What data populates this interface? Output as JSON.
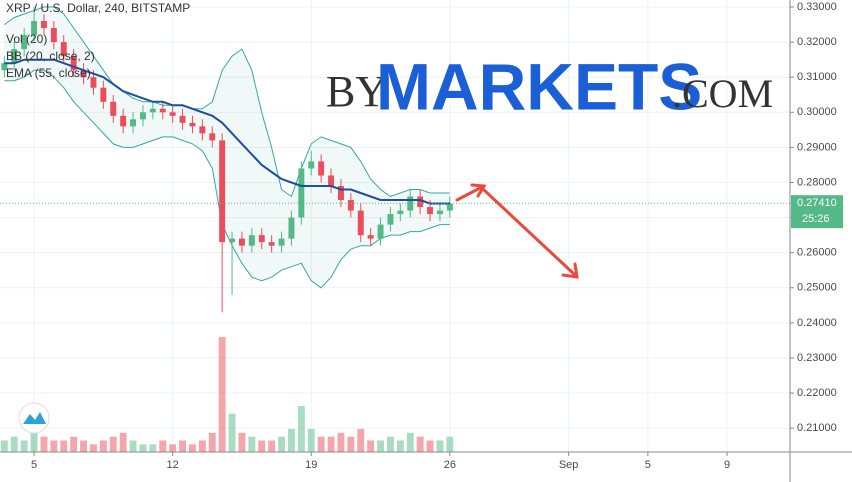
{
  "chart_data": {
    "type": "candlestick",
    "title": "XRP / U.S. Dollar, 240, BITSTAMP",
    "watermark": {
      "prefix": "BY",
      "main": "MARKETS",
      "suffix": ".COM"
    },
    "x": [
      3.5,
      4,
      4.5,
      5,
      5.5,
      6,
      6.5,
      7,
      7.5,
      8,
      8.5,
      9,
      9.5,
      10,
      10.5,
      11,
      11.5,
      12,
      12.5,
      13,
      13.5,
      14,
      14.5,
      15,
      15.5,
      16,
      16.5,
      17,
      17.5,
      18,
      18.5,
      19,
      19.5,
      20,
      20.5,
      21,
      21.5,
      22,
      22.5,
      23,
      23.5,
      24,
      24.5,
      25,
      25.5,
      26
    ],
    "open": [
      0.312,
      0.314,
      0.318,
      0.322,
      0.326,
      0.324,
      0.32,
      0.316,
      0.312,
      0.31,
      0.307,
      0.303,
      0.299,
      0.296,
      0.298,
      0.3,
      0.301,
      0.3,
      0.299,
      0.297,
      0.296,
      0.294,
      0.292,
      0.263,
      0.264,
      0.262,
      0.265,
      0.263,
      0.262,
      0.264,
      0.27,
      0.284,
      0.286,
      0.282,
      0.279,
      0.275,
      0.272,
      0.265,
      0.264,
      0.268,
      0.271,
      0.272,
      0.276,
      0.273,
      0.271,
      0.272
    ],
    "high": [
      0.316,
      0.32,
      0.324,
      0.33,
      0.328,
      0.326,
      0.322,
      0.318,
      0.314,
      0.312,
      0.309,
      0.305,
      0.301,
      0.3,
      0.302,
      0.303,
      0.303,
      0.302,
      0.301,
      0.299,
      0.298,
      0.296,
      0.294,
      0.266,
      0.266,
      0.267,
      0.267,
      0.265,
      0.266,
      0.272,
      0.286,
      0.289,
      0.288,
      0.284,
      0.281,
      0.277,
      0.274,
      0.267,
      0.27,
      0.273,
      0.274,
      0.278,
      0.278,
      0.275,
      0.274,
      0.276
    ],
    "low": [
      0.31,
      0.312,
      0.316,
      0.32,
      0.322,
      0.318,
      0.314,
      0.31,
      0.308,
      0.305,
      0.301,
      0.297,
      0.294,
      0.294,
      0.296,
      0.298,
      0.298,
      0.297,
      0.295,
      0.294,
      0.292,
      0.29,
      0.243,
      0.248,
      0.26,
      0.26,
      0.261,
      0.26,
      0.26,
      0.262,
      0.268,
      0.282,
      0.28,
      0.277,
      0.273,
      0.27,
      0.263,
      0.262,
      0.262,
      0.266,
      0.269,
      0.27,
      0.271,
      0.269,
      0.269,
      0.27
    ],
    "close": [
      0.314,
      0.318,
      0.322,
      0.326,
      0.324,
      0.32,
      0.316,
      0.312,
      0.31,
      0.307,
      0.303,
      0.299,
      0.296,
      0.298,
      0.3,
      0.301,
      0.3,
      0.299,
      0.297,
      0.296,
      0.294,
      0.292,
      0.263,
      0.264,
      0.262,
      0.265,
      0.263,
      0.262,
      0.264,
      0.27,
      0.284,
      0.286,
      0.282,
      0.279,
      0.275,
      0.272,
      0.265,
      0.264,
      0.268,
      0.271,
      0.272,
      0.276,
      0.273,
      0.271,
      0.272,
      0.274
    ],
    "up_color": "#53b987",
    "down_color": "#eb4d5c",
    "volume": {
      "name": "Vol (20)",
      "values": [
        3,
        4,
        3,
        5,
        4,
        3,
        3,
        4,
        3,
        2,
        3,
        4,
        5,
        3,
        2,
        2,
        3,
        2,
        3,
        2,
        3,
        5,
        30,
        10,
        5,
        4,
        3,
        3,
        4,
        6,
        12,
        6,
        4,
        4,
        5,
        4,
        6,
        3,
        3,
        4,
        3,
        5,
        4,
        3,
        3,
        4
      ]
    },
    "bollinger": {
      "name": "BB (20, close, 2)",
      "color": "#3aa6a0",
      "upper": [
        0.325,
        0.327,
        0.328,
        0.329,
        0.33,
        0.33,
        0.328,
        0.324,
        0.32,
        0.316,
        0.312,
        0.308,
        0.306,
        0.304,
        0.303,
        0.303,
        0.302,
        0.302,
        0.302,
        0.301,
        0.301,
        0.303,
        0.312,
        0.316,
        0.318,
        0.312,
        0.3,
        0.29,
        0.278,
        0.276,
        0.284,
        0.291,
        0.293,
        0.292,
        0.291,
        0.29,
        0.286,
        0.281,
        0.278,
        0.276,
        0.277,
        0.278,
        0.278,
        0.277,
        0.277,
        0.277
      ],
      "lower": [
        0.309,
        0.309,
        0.31,
        0.312,
        0.312,
        0.31,
        0.307,
        0.303,
        0.3,
        0.297,
        0.294,
        0.291,
        0.29,
        0.29,
        0.291,
        0.292,
        0.293,
        0.293,
        0.292,
        0.291,
        0.289,
        0.284,
        0.268,
        0.262,
        0.257,
        0.253,
        0.252,
        0.253,
        0.255,
        0.256,
        0.257,
        0.252,
        0.25,
        0.253,
        0.258,
        0.261,
        0.262,
        0.262,
        0.264,
        0.265,
        0.265,
        0.266,
        0.266,
        0.267,
        0.268,
        0.268
      ]
    },
    "ema": {
      "name": "EMA (55, close)",
      "color": "#1f4e9c",
      "values": [
        0.314,
        0.314,
        0.315,
        0.315,
        0.315,
        0.315,
        0.314,
        0.313,
        0.312,
        0.311,
        0.31,
        0.308,
        0.306,
        0.305,
        0.304,
        0.303,
        0.303,
        0.302,
        0.302,
        0.301,
        0.3,
        0.299,
        0.297,
        0.294,
        0.291,
        0.288,
        0.285,
        0.283,
        0.281,
        0.28,
        0.279,
        0.279,
        0.279,
        0.279,
        0.278,
        0.278,
        0.277,
        0.276,
        0.275,
        0.275,
        0.275,
        0.275,
        0.275,
        0.274,
        0.274,
        0.274
      ]
    },
    "last_price": {
      "value": 0.2741,
      "label": "0.27410"
    },
    "countdown": "25:26",
    "xlim": [
      3.28,
      43.18
    ],
    "ylim": [
      0.2032,
      0.332
    ],
    "xticks": [
      5,
      12,
      19,
      26,
      {
        "value": 32,
        "label": "Sep"
      },
      {
        "value": 36,
        "label": "5"
      },
      {
        "value": 40,
        "label": "9"
      }
    ],
    "yticks": [
      {
        "value": 0.21,
        "label": "0.21000"
      },
      {
        "value": 0.22,
        "label": "0.22000"
      },
      {
        "value": 0.23,
        "label": "0.23000"
      },
      {
        "value": 0.24,
        "label": "0.24000"
      },
      {
        "value": 0.25,
        "label": "0.25000"
      },
      {
        "value": 0.26,
        "label": "0.26000"
      },
      {
        "value": 0.27,
        "label": "0.27000"
      },
      {
        "value": 0.28,
        "label": "0.28000"
      },
      {
        "value": 0.29,
        "label": "0.29000"
      },
      {
        "value": 0.3,
        "label": "0.30000"
      },
      {
        "value": 0.31,
        "label": "0.31000"
      },
      {
        "value": 0.32,
        "label": "0.32000"
      },
      {
        "value": 0.33,
        "label": "0.33000"
      }
    ],
    "grid": true
  }
}
